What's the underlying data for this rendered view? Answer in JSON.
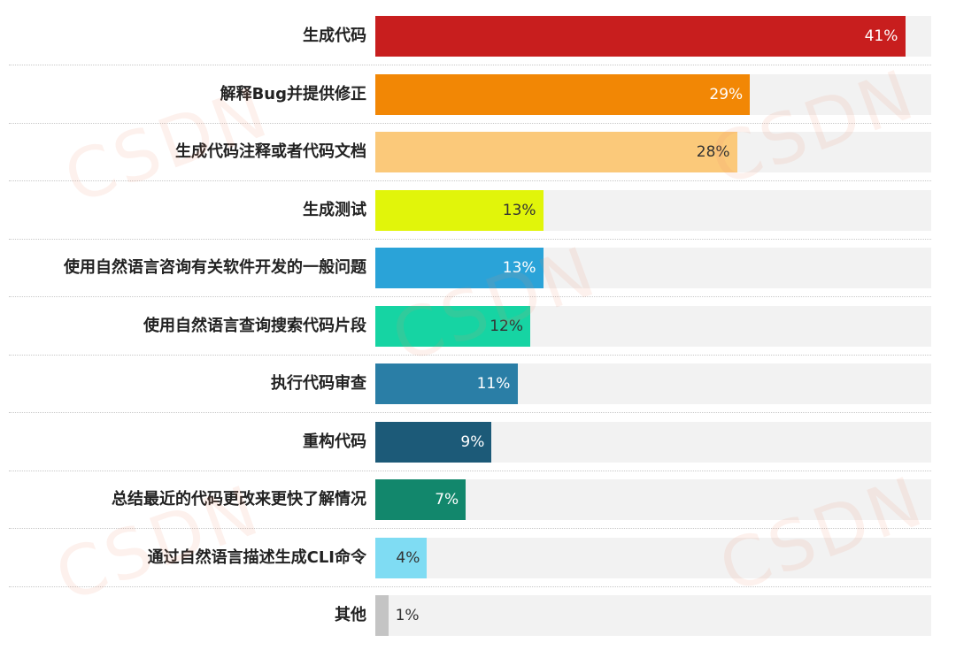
{
  "chart_data": {
    "type": "bar",
    "orientation": "horizontal",
    "xlim": [
      0,
      44
    ],
    "grid": false,
    "categories": [
      "生成代码",
      "解释Bug并提供修正",
      "生成代码注释或者代码文档",
      "生成测试",
      "使用自然语言咨询有关软件开发的一般问题",
      "使用自然语言查询搜索代码片段",
      "执行代码审查",
      "重构代码",
      "总结最近的代码更改来更快了解情况",
      "通过自然语言描述生成CLI命令",
      "其他"
    ],
    "values": [
      41,
      29,
      28,
      13,
      13,
      12,
      11,
      9,
      7,
      4,
      1
    ],
    "value_labels": [
      "41%",
      "29%",
      "28%",
      "13%",
      "13%",
      "12%",
      "11%",
      "9%",
      "7%",
      "4%",
      "1%"
    ],
    "colors": [
      "#c81e1e",
      "#f28705",
      "#fbc97a",
      "#e1f50a",
      "#2aa3d8",
      "#16d4a3",
      "#2a7ea6",
      "#1c5a78",
      "#12876c",
      "#7fdcf3",
      "#c4c4c4"
    ],
    "label_colors": [
      "#ffffff",
      "#ffffff",
      "#333333",
      "#333333",
      "#ffffff",
      "#333333",
      "#ffffff",
      "#ffffff",
      "#ffffff",
      "#333333",
      "#333333"
    ]
  },
  "watermark": "CSDN"
}
